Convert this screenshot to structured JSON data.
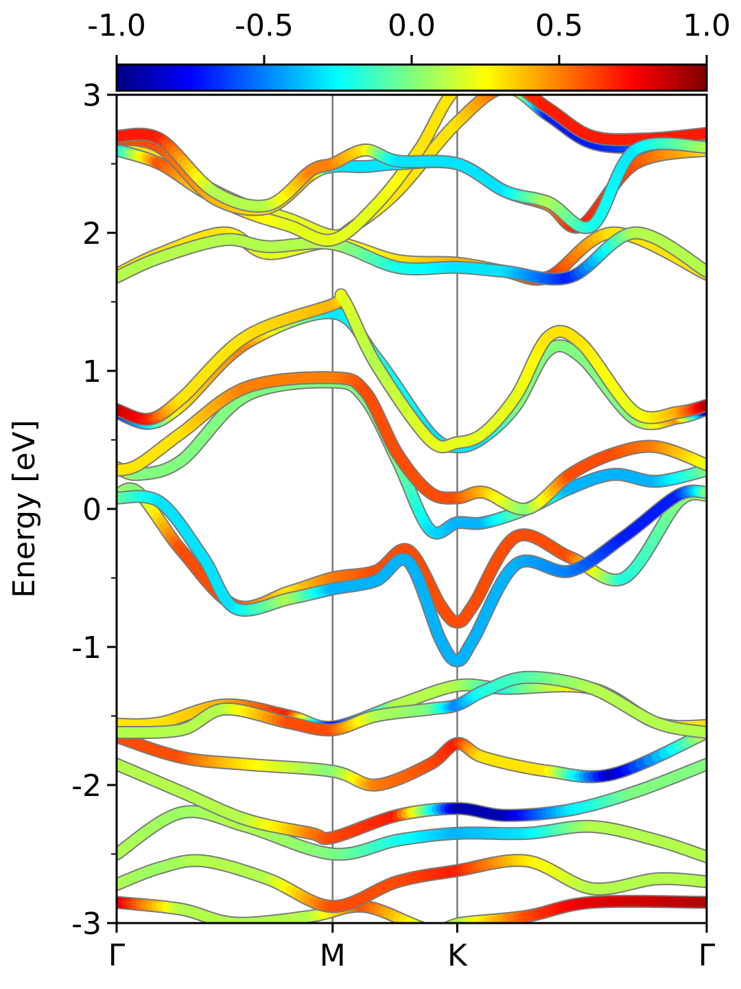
{
  "chart_data": {
    "type": "line",
    "title": "",
    "xlabel": "",
    "ylabel": "Energy [eV]",
    "ylim": [
      -3,
      3
    ],
    "y_ticks": [
      "3",
      "2",
      "1",
      "0",
      "-1",
      "-2",
      "-3"
    ],
    "x_ticks": [
      "Γ",
      "M",
      "K",
      "Γ"
    ],
    "colorbar": {
      "cmap": "jet",
      "range": [
        -1.0,
        1.0
      ],
      "tick_labels": [
        "-1.0",
        "-0.5",
        "0.0",
        "0.5",
        "1.0"
      ]
    },
    "k_path": {
      "segment_lengths": [
        1.0,
        0.577,
        1.155
      ]
    },
    "bands": [
      {
        "x": [
          0,
          0.3,
          0.55,
          0.9,
          1.15,
          1.45,
          1.6,
          1.9,
          2.2,
          2.732
        ],
        "y": [
          -2.85,
          -2.9,
          -3.0,
          -2.95,
          -2.88,
          -3.05,
          -3.0,
          -2.95,
          -2.85,
          -2.85
        ],
        "c": [
          0.9,
          0.1,
          0.1,
          0.1,
          0.6,
          0.1,
          0.1,
          0.6,
          0.8,
          0.9
        ]
      },
      {
        "x": [
          0,
          0.2,
          0.4,
          0.7,
          1.0,
          1.3,
          1.577,
          1.9,
          2.2,
          2.5,
          2.732
        ],
        "y": [
          -2.72,
          -2.6,
          -2.55,
          -2.68,
          -2.88,
          -2.7,
          -2.62,
          -2.55,
          -2.75,
          -2.68,
          -2.7
        ],
        "c": [
          0.1,
          0.05,
          0.1,
          0.1,
          0.6,
          0.6,
          0.7,
          0.3,
          0.1,
          0.1,
          0.1
        ]
      },
      {
        "x": [
          0,
          0.3,
          0.6,
          1.0,
          1.3,
          1.577,
          1.9,
          2.2,
          2.5,
          2.732
        ],
        "y": [
          -2.5,
          -2.2,
          -2.3,
          -2.5,
          -2.4,
          -2.35,
          -2.35,
          -2.3,
          -2.4,
          -2.52
        ],
        "c": [
          0.1,
          0.05,
          0.1,
          0.0,
          -0.2,
          -0.4,
          -0.3,
          0.1,
          0.1,
          0.1
        ]
      },
      {
        "x": [
          0,
          0.3,
          0.6,
          0.9,
          1.0,
          1.3,
          1.577,
          1.8,
          2.1,
          2.4,
          2.732
        ],
        "y": [
          -1.85,
          -2.05,
          -2.25,
          -2.35,
          -2.38,
          -2.22,
          -2.17,
          -2.22,
          -2.18,
          -2.05,
          -1.85
        ],
        "c": [
          0.1,
          0.1,
          0.1,
          0.5,
          0.6,
          0.7,
          -0.9,
          -0.9,
          -0.3,
          0.0,
          0.0
        ]
      },
      {
        "x": [
          0,
          0.3,
          0.6,
          1.0,
          1.2,
          1.45,
          1.577,
          1.7,
          2.0,
          2.3,
          2.732
        ],
        "y": [
          -1.65,
          -1.8,
          -1.85,
          -1.9,
          -2.0,
          -1.85,
          -1.7,
          -1.8,
          -1.9,
          -1.92,
          -1.62
        ],
        "c": [
          0.6,
          0.6,
          0.3,
          0.0,
          0.5,
          0.6,
          0.7,
          0.3,
          0.3,
          -0.9,
          0.2
        ]
      },
      {
        "x": [
          0,
          0.2,
          0.5,
          0.8,
          1.0,
          1.3,
          1.577,
          1.8,
          2.2,
          2.5,
          2.732
        ],
        "y": [
          -1.56,
          -1.55,
          -1.42,
          -1.5,
          -1.58,
          -1.42,
          -1.28,
          -1.3,
          -1.3,
          -1.55,
          -1.57
        ],
        "c": [
          0.3,
          0.3,
          0.4,
          0.7,
          -0.8,
          0.1,
          0.1,
          -0.2,
          0.4,
          0.3,
          0.3
        ]
      },
      {
        "x": [
          0,
          0.3,
          0.5,
          0.8,
          1.0,
          1.2,
          1.45,
          1.577,
          1.7,
          1.9,
          2.2,
          2.5,
          2.732
        ],
        "y": [
          -1.62,
          -1.6,
          -1.45,
          -1.55,
          -1.6,
          -1.5,
          -1.45,
          -1.42,
          -1.32,
          -1.22,
          -1.3,
          -1.55,
          -1.62
        ],
        "c": [
          0.1,
          0.1,
          0.1,
          0.6,
          0.6,
          0.1,
          0.0,
          -0.5,
          -0.2,
          -0.1,
          0.1,
          0.1,
          0.1
        ]
      },
      {
        "x": [
          0,
          0.1,
          0.3,
          0.55,
          0.8,
          1.0,
          1.2,
          1.35,
          1.5,
          1.577,
          1.65,
          1.85,
          2.1,
          2.35,
          2.6,
          2.732
        ],
        "y": [
          0.1,
          0.12,
          -0.3,
          -0.7,
          -0.6,
          -0.5,
          -0.45,
          -0.3,
          -0.7,
          -0.82,
          -0.7,
          -0.2,
          -0.35,
          -0.5,
          0.05,
          0.1
        ],
        "c": [
          0.1,
          0.0,
          0.6,
          0.6,
          0.3,
          0.5,
          0.6,
          0.6,
          0.6,
          0.6,
          0.6,
          0.6,
          0.6,
          -0.2,
          0.0,
          0.1
        ]
      },
      {
        "x": [
          0,
          0.2,
          0.4,
          0.55,
          0.8,
          1.0,
          1.2,
          1.35,
          1.5,
          1.577,
          1.65,
          1.85,
          2.1,
          2.35,
          2.6,
          2.732
        ],
        "y": [
          0.08,
          0.05,
          -0.35,
          -0.72,
          -0.65,
          -0.58,
          -0.52,
          -0.38,
          -0.95,
          -1.1,
          -0.95,
          -0.4,
          -0.45,
          -0.2,
          0.1,
          0.12
        ],
        "c": [
          0.0,
          -0.3,
          -0.3,
          -0.3,
          0.1,
          -0.4,
          -0.4,
          -0.4,
          -0.4,
          -0.4,
          -0.4,
          -0.4,
          -0.5,
          -0.7,
          -0.7,
          0.0
        ]
      },
      {
        "x": [
          0,
          0.1,
          0.3,
          0.6,
          1.0,
          1.15,
          1.3,
          1.45,
          1.577,
          1.7,
          1.9,
          2.1,
          2.3,
          2.5,
          2.732
        ],
        "y": [
          0.3,
          0.25,
          0.35,
          0.82,
          0.92,
          0.8,
          0.35,
          -0.15,
          -0.1,
          -0.1,
          0.0,
          0.15,
          0.25,
          0.2,
          0.28
        ],
        "c": [
          0.3,
          0.0,
          0.0,
          0.0,
          0.0,
          0.0,
          0.0,
          -0.3,
          -0.4,
          -0.4,
          0.0,
          -0.4,
          -0.4,
          -0.4,
          0.0
        ]
      },
      {
        "x": [
          0,
          0.1,
          0.3,
          0.6,
          1.0,
          1.15,
          1.3,
          1.45,
          1.577,
          1.7,
          1.9,
          2.1,
          2.3,
          2.5,
          2.732
        ],
        "y": [
          0.28,
          0.32,
          0.55,
          0.88,
          0.95,
          0.85,
          0.4,
          0.12,
          0.08,
          0.12,
          0.0,
          0.25,
          0.4,
          0.45,
          0.32
        ],
        "c": [
          0.3,
          0.3,
          0.3,
          0.5,
          0.5,
          0.6,
          0.6,
          0.6,
          0.6,
          0.4,
          0.0,
          0.6,
          0.6,
          0.5,
          0.2
        ]
      },
      {
        "x": [
          0,
          0.15,
          0.3,
          0.6,
          1.0,
          1.2,
          1.45,
          1.577,
          1.7,
          1.85,
          2.0,
          2.15,
          2.4,
          2.6,
          2.732
        ],
        "y": [
          0.7,
          0.62,
          0.75,
          1.2,
          1.42,
          1.1,
          0.55,
          0.45,
          0.52,
          0.75,
          1.15,
          1.1,
          0.65,
          0.66,
          0.72
        ],
        "c": [
          -0.8,
          -0.3,
          0.3,
          0.5,
          -0.3,
          -0.2,
          -0.3,
          -0.3,
          -0.3,
          0.0,
          0.0,
          0.0,
          0.0,
          0.5,
          -0.9
        ]
      },
      {
        "x": [
          0,
          0.15,
          0.3,
          0.6,
          1.0,
          1.05,
          1.2,
          1.45,
          1.577,
          1.7,
          1.85,
          2.0,
          2.15,
          2.4,
          2.6,
          2.732
        ],
        "y": [
          0.72,
          0.65,
          0.8,
          1.25,
          1.48,
          1.52,
          1.05,
          0.5,
          0.48,
          0.55,
          0.82,
          1.25,
          1.2,
          0.7,
          0.7,
          0.75
        ],
        "c": [
          0.9,
          0.7,
          0.3,
          0.3,
          0.4,
          0.2,
          0.1,
          0.2,
          0.2,
          0.2,
          0.2,
          0.3,
          0.3,
          0.2,
          0.4,
          0.9
        ]
      },
      {
        "x": [
          0,
          0.2,
          0.5,
          0.7,
          1.0,
          1.3,
          1.577,
          1.8,
          2.0,
          2.3,
          2.732
        ],
        "y": [
          1.7,
          1.85,
          2.0,
          1.85,
          1.93,
          1.8,
          1.78,
          1.72,
          1.68,
          2.0,
          1.7
        ],
        "c": [
          0.3,
          0.3,
          0.3,
          0.2,
          0.2,
          0.3,
          0.4,
          0.4,
          0.7,
          0.3,
          0.3
        ]
      },
      {
        "x": [
          0,
          0.2,
          0.5,
          0.7,
          1.0,
          1.3,
          1.577,
          1.8,
          2.1,
          2.4,
          2.732
        ],
        "y": [
          1.68,
          1.82,
          1.95,
          1.9,
          1.92,
          1.75,
          1.75,
          1.72,
          1.68,
          2.0,
          1.72
        ],
        "c": [
          0.1,
          0.1,
          0.1,
          0.1,
          0.1,
          -0.2,
          -0.3,
          -0.3,
          -0.7,
          0.1,
          0.1
        ]
      },
      {
        "x": [
          0,
          0.2,
          0.4,
          0.6,
          0.8,
          1.0,
          1.1,
          1.3,
          1.577,
          1.8,
          2.0,
          2.2,
          2.45,
          2.732
        ],
        "y": [
          2.62,
          2.55,
          2.35,
          2.2,
          2.1,
          1.98,
          2.05,
          2.3,
          2.8,
          3.05,
          2.85,
          2.65,
          2.62,
          2.65
        ],
        "c": [
          0.3,
          0.3,
          0.3,
          0.2,
          0.2,
          0.2,
          0.2,
          0.3,
          0.3,
          0.6,
          -0.7,
          -0.7,
          -0.6,
          -0.4
        ]
      },
      {
        "x": [
          0,
          0.2,
          0.4,
          0.6,
          0.8,
          1.0,
          1.2,
          1.4,
          1.577,
          1.8,
          2.0,
          2.2,
          2.45,
          2.732
        ],
        "y": [
          2.6,
          2.5,
          2.3,
          2.15,
          2.05,
          1.95,
          2.2,
          2.6,
          3.05,
          3.1,
          2.9,
          2.7,
          2.68,
          2.72
        ],
        "c": [
          -0.4,
          0.6,
          0.3,
          0.3,
          0.2,
          0.2,
          0.2,
          0.3,
          0.3,
          0.6,
          0.7,
          0.7,
          0.7,
          0.7
        ]
      },
      {
        "x": [
          0,
          0.2,
          0.45,
          0.7,
          0.9,
          1.0,
          1.15,
          1.3,
          1.577,
          1.8,
          2.0,
          2.15,
          2.4,
          2.732
        ],
        "y": [
          2.68,
          2.62,
          2.25,
          2.18,
          2.42,
          2.48,
          2.48,
          2.5,
          2.5,
          2.3,
          2.2,
          2.05,
          2.5,
          2.6
        ],
        "c": [
          0.6,
          0.6,
          0.4,
          0.3,
          0.4,
          -0.3,
          -0.3,
          -0.3,
          0.6,
          0.6,
          0.5,
          0.7,
          0.6,
          0.3
        ]
      },
      {
        "x": [
          0,
          0.2,
          0.45,
          0.7,
          0.9,
          1.0,
          1.15,
          1.3,
          1.577,
          1.8,
          2.0,
          2.2,
          2.4,
          2.732
        ],
        "y": [
          2.7,
          2.68,
          2.3,
          2.2,
          2.45,
          2.5,
          2.6,
          2.52,
          2.5,
          2.3,
          2.22,
          2.05,
          2.6,
          2.62
        ],
        "c": [
          0.7,
          0.7,
          0.1,
          0.1,
          0.5,
          0.5,
          0.3,
          -0.3,
          -0.3,
          -0.3,
          0.1,
          -0.2,
          -0.3,
          0.1
        ]
      }
    ]
  }
}
